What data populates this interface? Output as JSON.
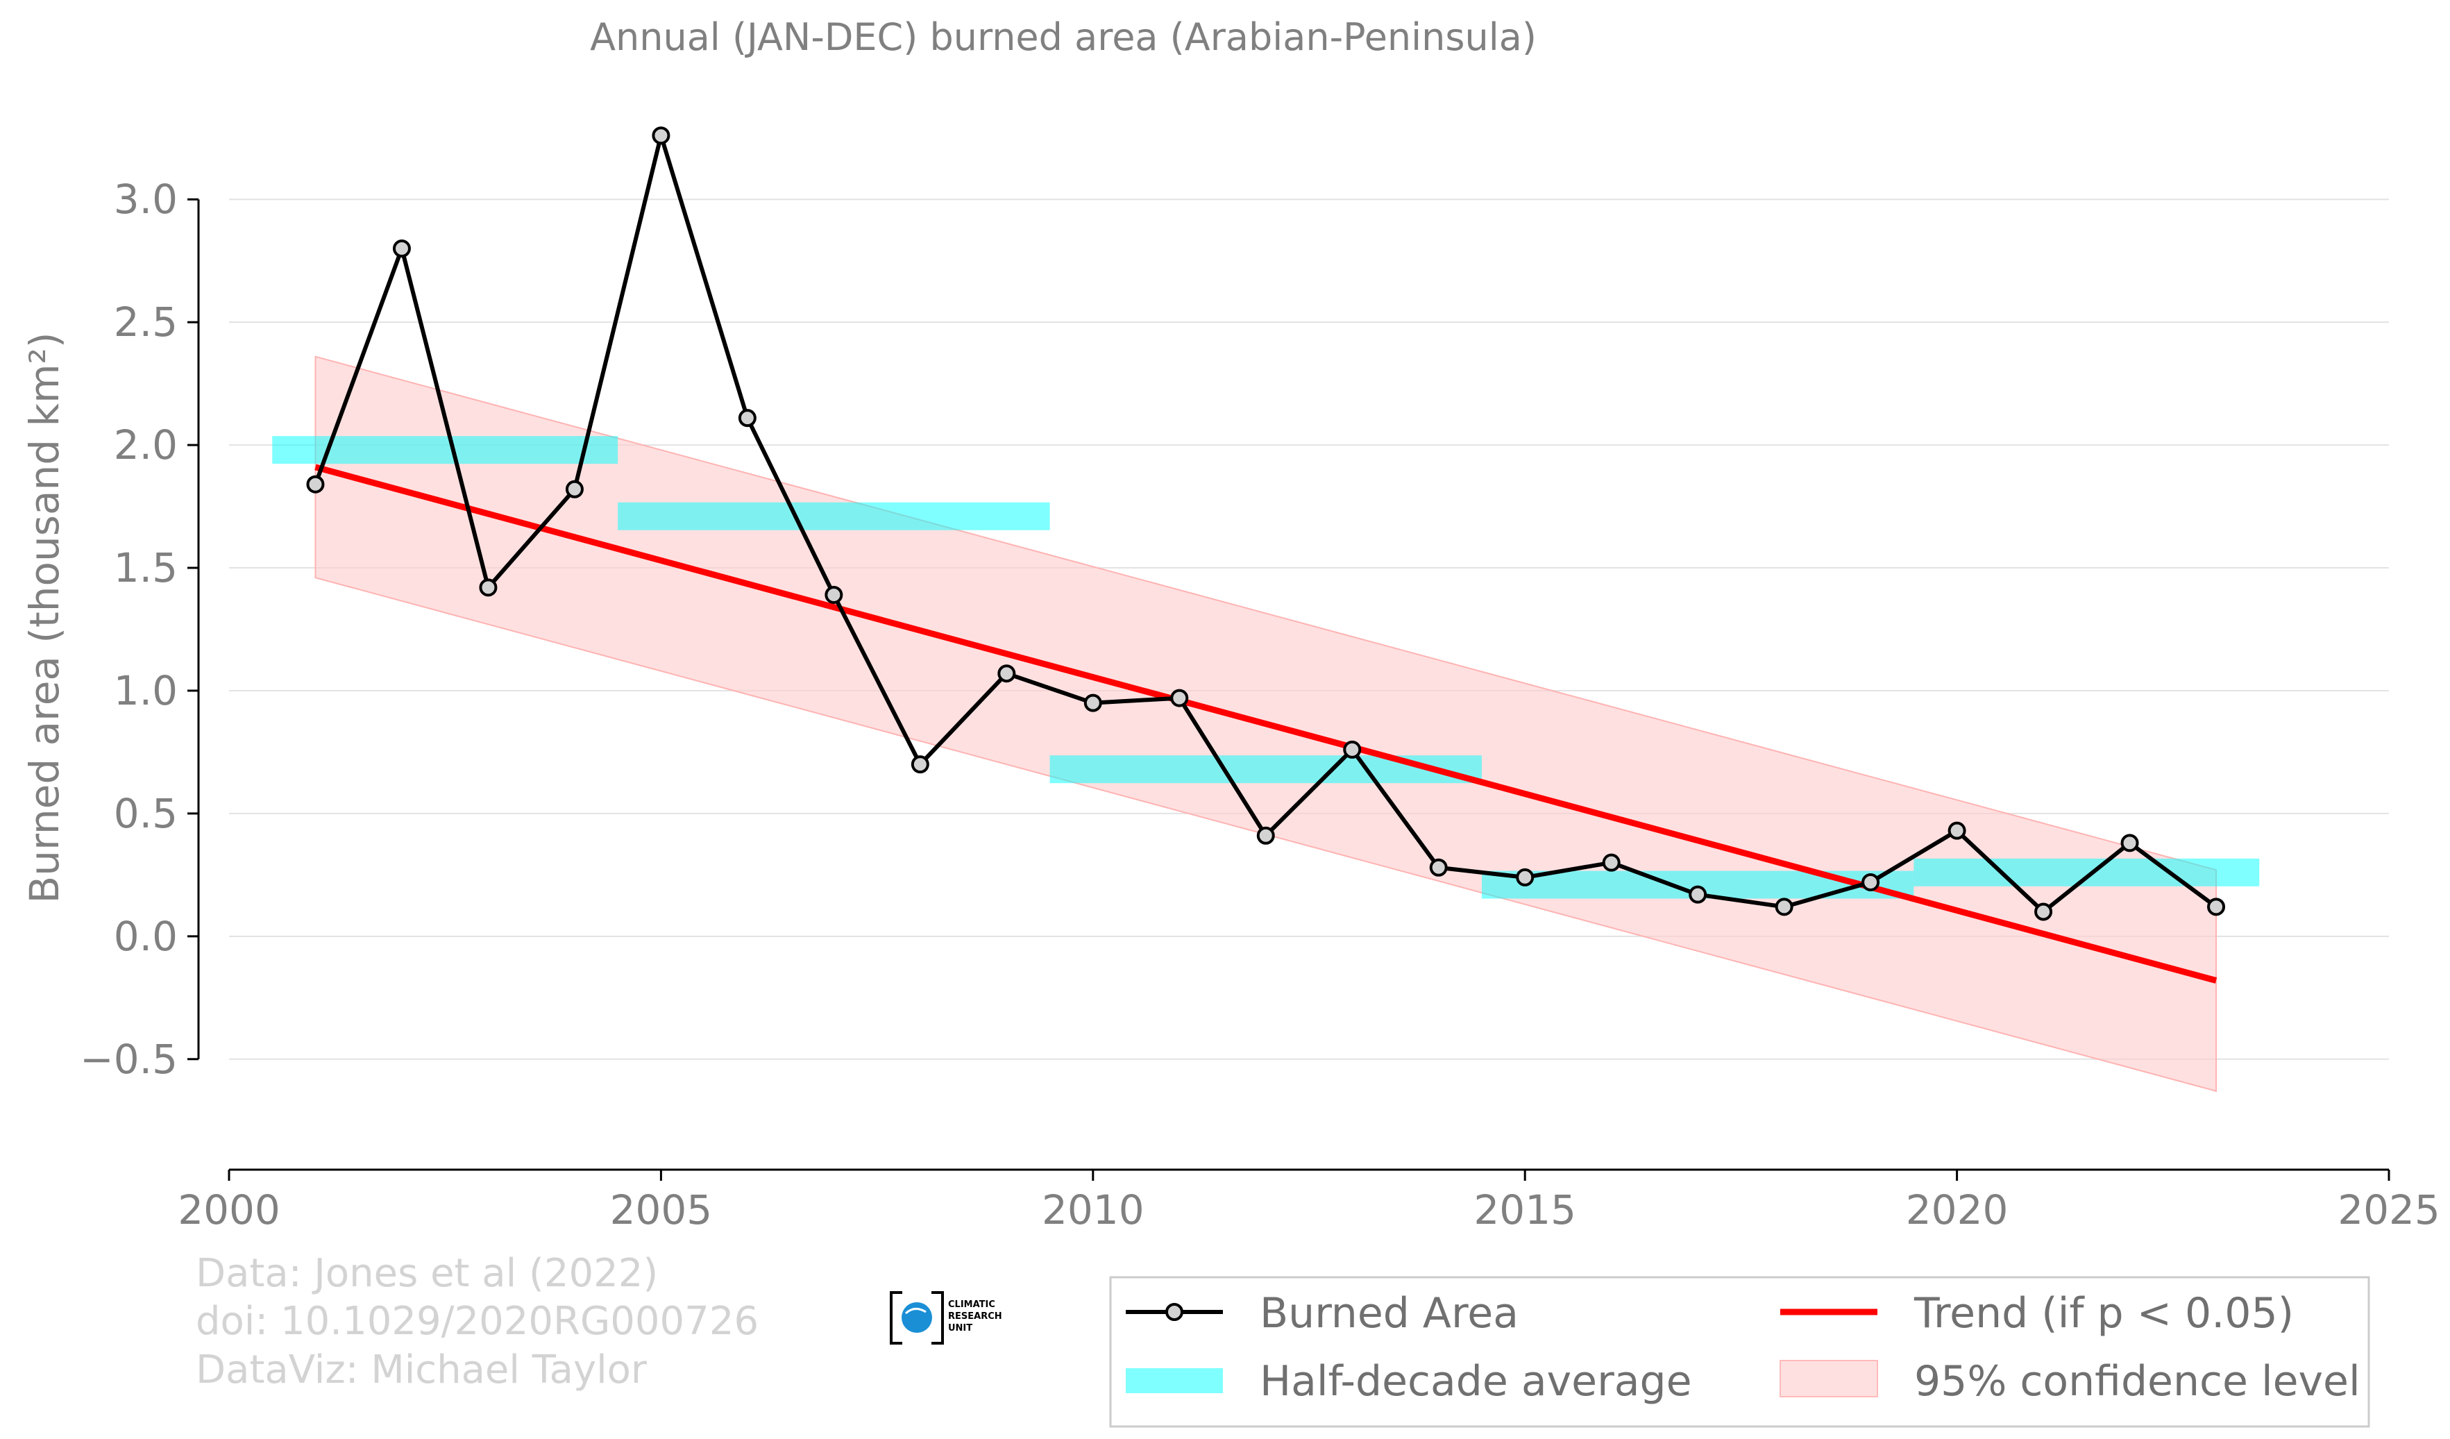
{
  "chart_data": {
    "type": "line",
    "title": "Annual (JAN-DEC) burned area (Arabian-Peninsula)",
    "ylabel": "Burned area (thousand km²)",
    "xlabel": "",
    "xlim": [
      2000,
      2025
    ],
    "ylim": [
      -0.95,
      3.45
    ],
    "grid": "horizontal",
    "legend_position": "bottom-right",
    "x_ticks": [
      "2000",
      "2005",
      "2010",
      "2015",
      "2020",
      "2025"
    ],
    "y_ticks": [
      "−0.5",
      "0.0",
      "0.5",
      "1.0",
      "1.5",
      "2.0",
      "2.5",
      "3.0"
    ],
    "series": [
      {
        "name": "Burned Area",
        "x": [
          2001,
          2002,
          2003,
          2004,
          2005,
          2006,
          2007,
          2008,
          2009,
          2010,
          2011,
          2012,
          2013,
          2014,
          2015,
          2016,
          2017,
          2018,
          2019,
          2020,
          2021,
          2022,
          2023
        ],
        "y": [
          1.84,
          2.8,
          1.42,
          1.82,
          3.26,
          2.11,
          1.39,
          0.7,
          1.07,
          0.95,
          0.97,
          0.41,
          0.76,
          0.28,
          0.24,
          0.3,
          0.17,
          0.12,
          0.22,
          0.43,
          0.1,
          0.38,
          0.12
        ],
        "color": "#000000"
      },
      {
        "name": "Half-decade average",
        "segments": [
          {
            "x0": 2000.5,
            "x1": 2004.5,
            "y": 1.98
          },
          {
            "x0": 2004.5,
            "x1": 2009.5,
            "y": 1.71
          },
          {
            "x0": 2009.5,
            "x1": 2014.5,
            "y": 0.68
          },
          {
            "x0": 2014.5,
            "x1": 2019.5,
            "y": 0.21
          },
          {
            "x0": 2019.5,
            "x1": 2023.5,
            "y": 0.26
          }
        ],
        "color": "#00ffff"
      },
      {
        "name": "Trend (if p < 0.05)",
        "x": [
          2001,
          2023
        ],
        "y": [
          1.91,
          -0.18
        ],
        "color": "#ff0000"
      },
      {
        "name": "95% confidence level",
        "x": [
          2001,
          2023
        ],
        "upper": [
          2.36,
          0.27
        ],
        "lower": [
          1.46,
          -0.63
        ],
        "color": "#ffcccc"
      }
    ]
  },
  "credits": {
    "line1": "Data: Jones et al (2022)",
    "line2": "doi: 10.1029/2020RG000726",
    "line3": "DataViz: Michael Taylor"
  },
  "logo": {
    "line1": "CLIMATIC",
    "line2": "RESEARCH",
    "line3": "UNIT"
  },
  "legend": {
    "burned": "Burned Area",
    "half": "Half-decade average",
    "trend": "Trend (if p < 0.05)",
    "ci": "95% confidence level"
  }
}
